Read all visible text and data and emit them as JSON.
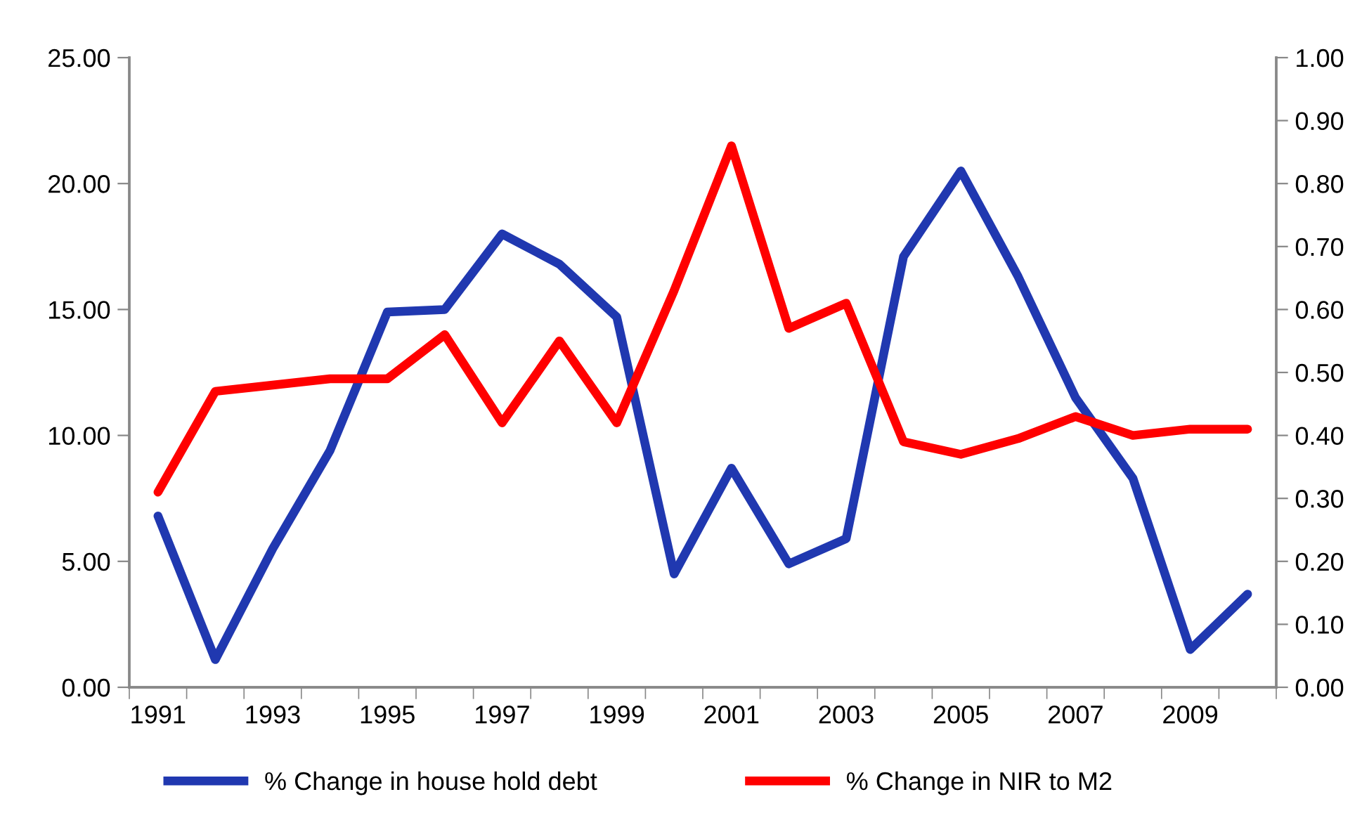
{
  "chart_data": {
    "type": "line",
    "categories": [
      "1991",
      null,
      "1993",
      null,
      "1995",
      null,
      "1997",
      null,
      "1999",
      null,
      "2001",
      null,
      "2003",
      null,
      "2005",
      null,
      "2007",
      null,
      "2009",
      null
    ],
    "series": [
      {
        "name": "% Change in house hold debt",
        "color": "#2038b0",
        "values": [
          6.8,
          1.1,
          5.5,
          9.4,
          14.9,
          15.0,
          18.0,
          16.8,
          14.7,
          4.5,
          8.7,
          4.9,
          5.9,
          17.1,
          20.5,
          16.3,
          11.5,
          8.3,
          1.5,
          3.7
        ]
      },
      {
        "name": "% Change in NIR to M2",
        "color": "#ff0000",
        "axis": "y2",
        "values": [
          0.31,
          0.47,
          0.48,
          0.49,
          0.49,
          0.56,
          0.42,
          0.55,
          0.42,
          0.63,
          0.86,
          0.57,
          0.61,
          0.39,
          0.37,
          0.395,
          0.43,
          0.4,
          0.41,
          0.41
        ]
      }
    ],
    "ylim": [
      0,
      25
    ],
    "yticks": [
      {
        "value": 0,
        "label": "0.00"
      },
      {
        "value": 5,
        "label": "5.00"
      },
      {
        "value": 10,
        "label": "10.00"
      },
      {
        "value": 15,
        "label": "15.00"
      },
      {
        "value": 20,
        "label": "20.00"
      },
      {
        "value": 25,
        "label": "25.00"
      }
    ],
    "y2lim": [
      0,
      1
    ],
    "y2ticks": [
      {
        "value": 0,
        "label": "0.00"
      },
      {
        "value": 0.1,
        "label": "0.10"
      },
      {
        "value": 0.2,
        "label": "0.20"
      },
      {
        "value": 0.3,
        "label": "0.30"
      },
      {
        "value": 0.4,
        "label": "0.40"
      },
      {
        "value": 0.5,
        "label": "0.50"
      },
      {
        "value": 0.6,
        "label": "0.60"
      },
      {
        "value": 0.7,
        "label": "0.70"
      },
      {
        "value": 0.8,
        "label": "0.80"
      },
      {
        "value": 0.9,
        "label": "0.90"
      },
      {
        "value": 1,
        "label": "1.00"
      }
    ],
    "grid": false,
    "legend": "bottom",
    "marker": "none",
    "line_style": "solid"
  }
}
